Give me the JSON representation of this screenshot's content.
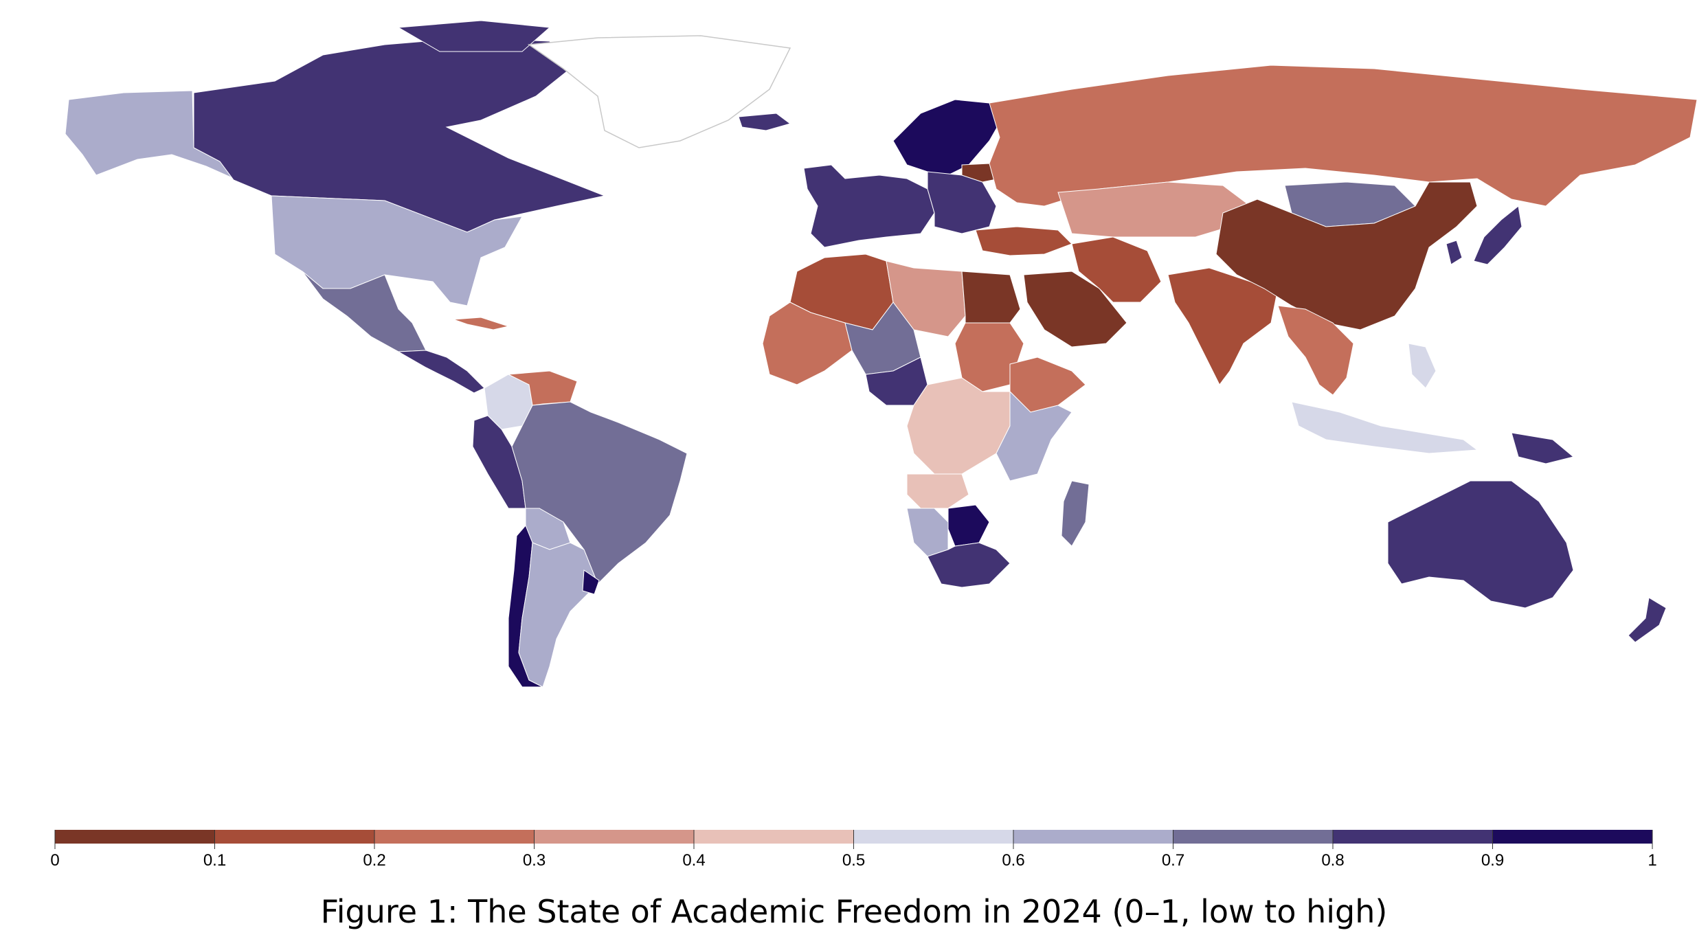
{
  "caption": "Figure 1: The State of Academic Freedom in 2024 (0–1, low to high)",
  "legend": {
    "bins": [
      {
        "from": 0.0,
        "to": 0.1,
        "color": "#7a3626"
      },
      {
        "from": 0.1,
        "to": 0.2,
        "color": "#a64d38"
      },
      {
        "from": 0.2,
        "to": 0.3,
        "color": "#c46f5b"
      },
      {
        "from": 0.3,
        "to": 0.4,
        "color": "#d5968a"
      },
      {
        "from": 0.4,
        "to": 0.5,
        "color": "#e8c1b8"
      },
      {
        "from": 0.5,
        "to": 0.6,
        "color": "#d6d8e8"
      },
      {
        "from": 0.6,
        "to": 0.7,
        "color": "#abaccb"
      },
      {
        "from": 0.7,
        "to": 0.8,
        "color": "#726e96"
      },
      {
        "from": 0.8,
        "to": 0.9,
        "color": "#423373"
      },
      {
        "from": 0.9,
        "to": 1.0,
        "color": "#1c0a5c"
      }
    ],
    "tick_labels": [
      "0",
      "0.1",
      "0.2",
      "0.3",
      "0.4",
      "0.5",
      "0.6",
      "0.7",
      "0.8",
      "0.9",
      "1"
    ]
  },
  "regions": [
    {
      "id": "alaska",
      "bin": 6
    },
    {
      "id": "canada",
      "bin": 8
    },
    {
      "id": "usa",
      "bin": 6
    },
    {
      "id": "mexico",
      "bin": 7
    },
    {
      "id": "central-america",
      "bin": 8
    },
    {
      "id": "cuba",
      "bin": 2
    },
    {
      "id": "colombia",
      "bin": 5
    },
    {
      "id": "venezuela",
      "bin": 2
    },
    {
      "id": "peru",
      "bin": 8
    },
    {
      "id": "brazil",
      "bin": 7
    },
    {
      "id": "bolivia",
      "bin": 6
    },
    {
      "id": "chile",
      "bin": 9
    },
    {
      "id": "argentina",
      "bin": 6
    },
    {
      "id": "uruguay",
      "bin": 9
    },
    {
      "id": "greenland",
      "bin": -1
    },
    {
      "id": "iceland",
      "bin": 8
    },
    {
      "id": "scandinavia",
      "bin": 9
    },
    {
      "id": "western-europe",
      "bin": 8
    },
    {
      "id": "eastern-europe",
      "bin": 8
    },
    {
      "id": "belarus",
      "bin": 0
    },
    {
      "id": "russia",
      "bin": 2
    },
    {
      "id": "turkey",
      "bin": 1
    },
    {
      "id": "north-africa-west",
      "bin": 1
    },
    {
      "id": "libya",
      "bin": 3
    },
    {
      "id": "egypt",
      "bin": 0
    },
    {
      "id": "west-africa",
      "bin": 2
    },
    {
      "id": "sahel",
      "bin": 7
    },
    {
      "id": "nigeria",
      "bin": 8
    },
    {
      "id": "sudan",
      "bin": 2
    },
    {
      "id": "ethiopia",
      "bin": 2
    },
    {
      "id": "central-africa",
      "bin": 4
    },
    {
      "id": "east-africa",
      "bin": 6
    },
    {
      "id": "angola",
      "bin": 4
    },
    {
      "id": "namibia",
      "bin": 6
    },
    {
      "id": "botswana",
      "bin": 9
    },
    {
      "id": "south-africa",
      "bin": 8
    },
    {
      "id": "madagascar",
      "bin": 7
    },
    {
      "id": "saudi-arabia",
      "bin": 0
    },
    {
      "id": "iran",
      "bin": 1
    },
    {
      "id": "central-asia",
      "bin": 3
    },
    {
      "id": "india",
      "bin": 1
    },
    {
      "id": "mongolia",
      "bin": 7
    },
    {
      "id": "china",
      "bin": 0
    },
    {
      "id": "japan",
      "bin": 8
    },
    {
      "id": "korea",
      "bin": 8
    },
    {
      "id": "southeast-asia",
      "bin": 2
    },
    {
      "id": "indonesia",
      "bin": 5
    },
    {
      "id": "philippines",
      "bin": 5
    },
    {
      "id": "papua-new-guinea",
      "bin": 8
    },
    {
      "id": "australia",
      "bin": 8
    },
    {
      "id": "new-zealand",
      "bin": 8
    }
  ]
}
